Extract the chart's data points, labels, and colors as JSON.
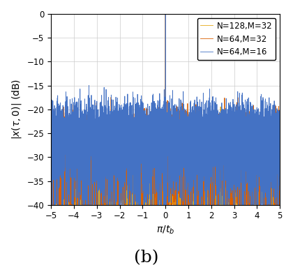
{
  "title": "(b)",
  "xlabel": "π/t_b",
  "ylabel": "|x(τ,0)| (dB)",
  "xlim": [
    -5,
    5
  ],
  "ylim": [
    -40,
    0
  ],
  "xticks": [
    -5,
    -4,
    -3,
    -2,
    -1,
    0,
    1,
    2,
    3,
    4,
    5
  ],
  "yticks": [
    0,
    -5,
    -10,
    -15,
    -20,
    -25,
    -30,
    -35,
    -40
  ],
  "series": [
    {
      "label": "N=64,M=16",
      "color": "#4472C4",
      "N": 64,
      "M": 16
    },
    {
      "label": "N=64,M=32",
      "color": "#D95F02",
      "N": 64,
      "M": 32
    },
    {
      "label": "N=128,M=32",
      "color": "#E6A817",
      "N": 128,
      "M": 32
    }
  ],
  "grid_color": "#cccccc",
  "background_color": "#ffffff",
  "legend_fontsize": 8.5,
  "axis_fontsize": 10,
  "title_fontsize": 18,
  "linewidth": 0.6
}
